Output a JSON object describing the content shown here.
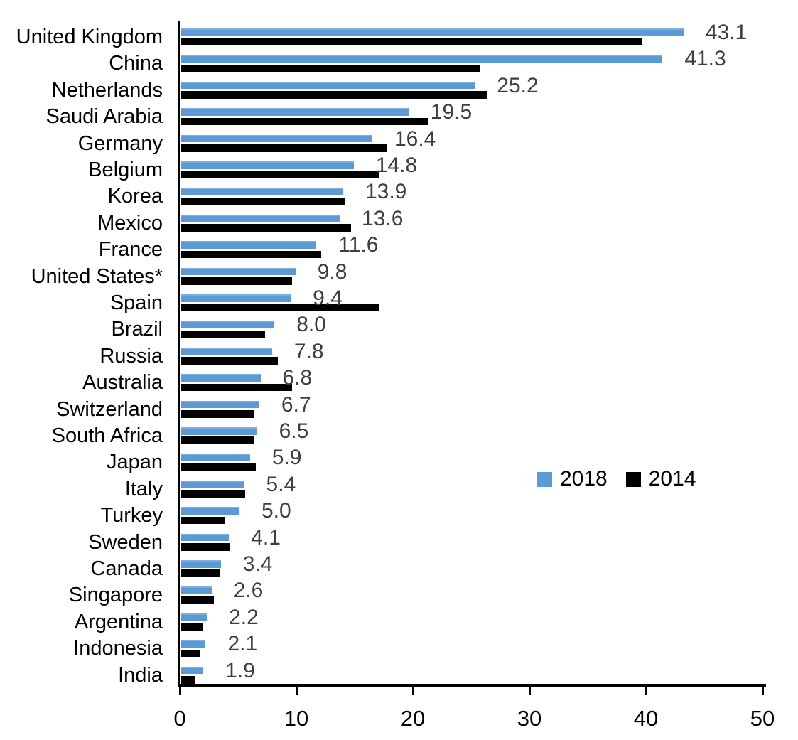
{
  "chart_data": {
    "type": "bar",
    "orientation": "horizontal",
    "title": "",
    "categories": [
      "United Kingdom",
      "China",
      "Netherlands",
      "Saudi Arabia",
      "Germany",
      "Belgium",
      "Korea",
      "Mexico",
      "France",
      "United States*",
      "Spain",
      "Brazil",
      "Russia",
      "Australia",
      "Switzerland",
      "South Africa",
      "Japan",
      "Italy",
      "Turkey",
      "Sweden",
      "Canada",
      "Singapore",
      "Argentina",
      "Indonesia",
      "India"
    ],
    "series": [
      {
        "name": "2018",
        "color": "#5b9bd5",
        "values": [
          43.1,
          41.3,
          25.2,
          19.5,
          16.4,
          14.8,
          13.9,
          13.6,
          11.6,
          9.8,
          9.4,
          8.0,
          7.8,
          6.8,
          6.7,
          6.5,
          5.9,
          5.4,
          5.0,
          4.1,
          3.4,
          2.6,
          2.2,
          2.1,
          1.9
        ]
      },
      {
        "name": "2014",
        "color": "#000000",
        "values": [
          39.6,
          25.7,
          26.3,
          21.2,
          17.7,
          17.0,
          14.0,
          14.6,
          12.0,
          9.5,
          17.0,
          7.2,
          8.3,
          9.5,
          6.3,
          6.3,
          6.4,
          5.5,
          3.7,
          4.2,
          3.3,
          2.8,
          1.9,
          1.6,
          1.2
        ]
      }
    ],
    "value_labels": [
      "43.1",
      "41.3",
      "25.2",
      "19.5",
      "16.4",
      "14.8",
      "13.9",
      "13.6",
      "11.6",
      "9.8",
      "9.4",
      "8.0",
      "7.8",
      "6.8",
      "6.7",
      "6.5",
      "5.9",
      "5.4",
      "5.0",
      "4.1",
      "3.4",
      "2.6",
      "2.2",
      "2.1",
      "1.9"
    ],
    "value_labels_series": "2018",
    "xlabel": "",
    "ylabel": "",
    "xlim": [
      0,
      50
    ],
    "x_tick_labels": [
      "0",
      "10",
      "20",
      "30",
      "40",
      "50"
    ],
    "x_tick_values": [
      0,
      10,
      20,
      30,
      40,
      50
    ],
    "grid": false,
    "legend_position": "middle-right"
  },
  "legend": {
    "items": [
      {
        "label": "2018",
        "color": "#5b9bd5"
      },
      {
        "label": "2014",
        "color": "#000000"
      }
    ]
  },
  "colors": {
    "bar_2018": "#5b9bd5",
    "bar_2014": "#000000",
    "value_label": "#3f3f3f",
    "axis": "#000000",
    "background": "#ffffff"
  }
}
